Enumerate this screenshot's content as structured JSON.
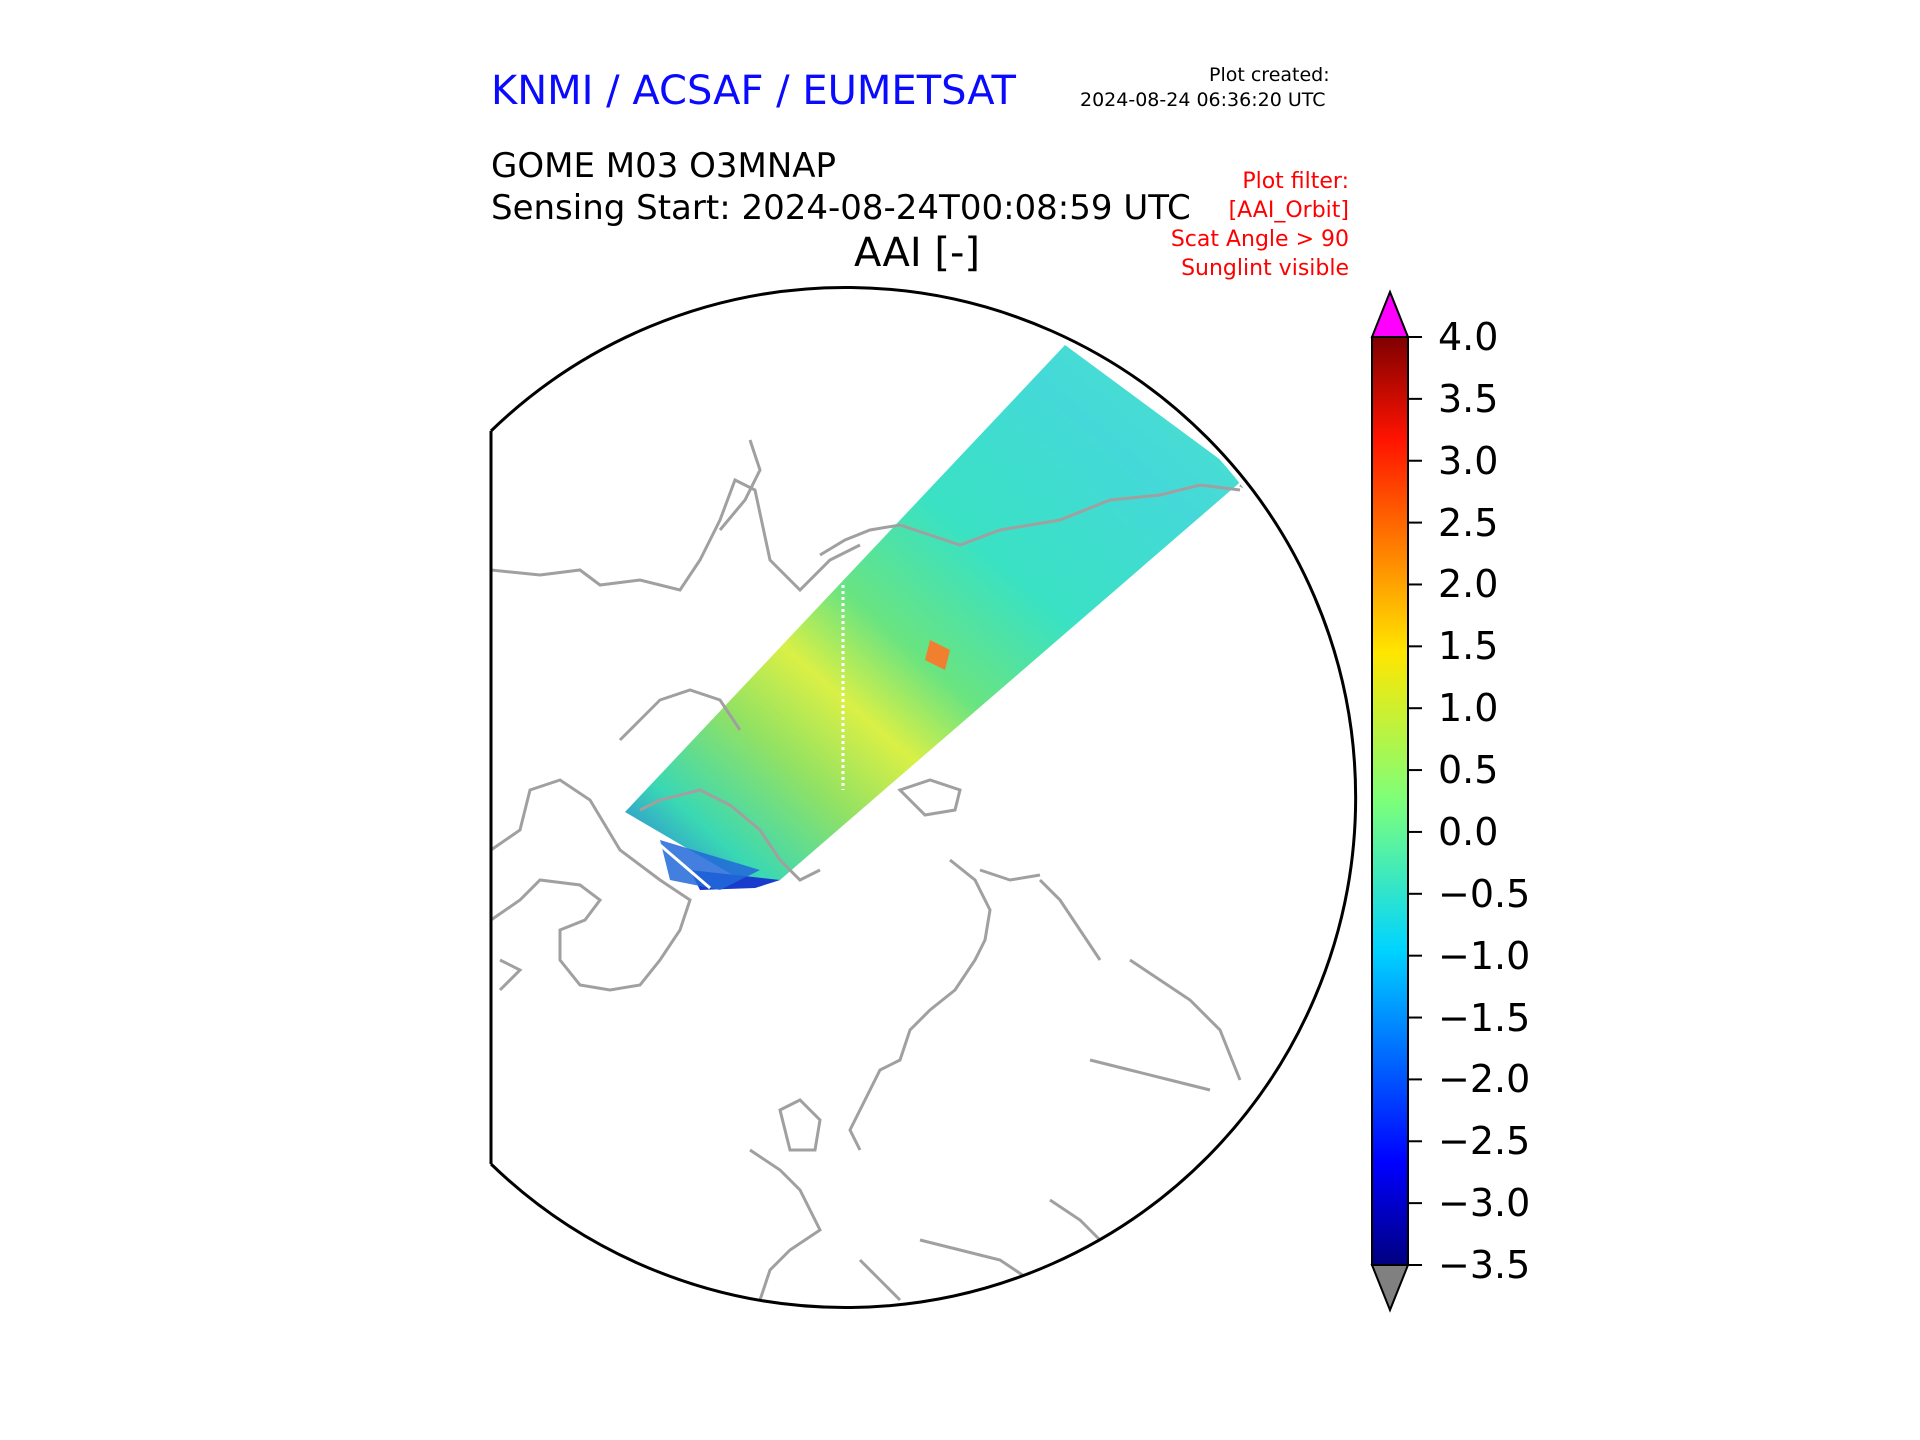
{
  "header": {
    "credit": "KNMI / ACSAF / EUMETSAT",
    "plot_created_label": "Plot created:",
    "plot_created_value": "2024-08-24 06:36:20 UTC",
    "product": "GOME M03 O3MNAP",
    "sensing_start": "Sensing Start: 2024-08-24T00:08:59 UTC",
    "parameter": "AAI [-]"
  },
  "filter": {
    "lines": [
      "Plot filter:",
      "[AAI_Orbit]",
      "Scat Angle > 90",
      "Sunglint visible"
    ]
  },
  "colorbar": {
    "ticks": [
      "4.0",
      "3.5",
      "3.0",
      "2.5",
      "2.0",
      "1.5",
      "1.0",
      "0.5",
      "0.0",
      "−0.5",
      "−1.0",
      "−1.5",
      "−2.0",
      "−2.5",
      "−3.0",
      "−3.5"
    ],
    "range": [
      -3.5,
      4.0
    ],
    "over_color": "#ff00ff",
    "under_color": "#808080",
    "colormap": "jet"
  },
  "map": {
    "projection": "north polar stereographic",
    "coastline_color": "#a0a0a0",
    "boundary_color": "#000000"
  }
}
